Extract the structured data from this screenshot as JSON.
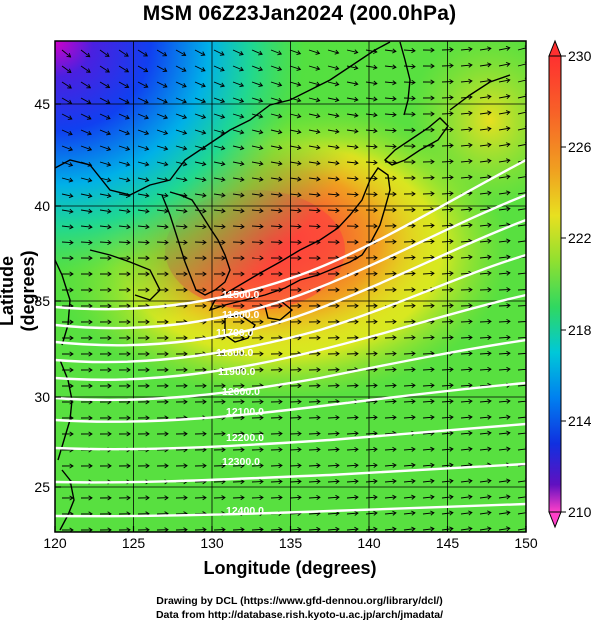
{
  "title": "MSM 06Z23Jan2024 (200.0hPa)",
  "axes": {
    "xlabel": "Longitude (degrees)",
    "ylabel": "Latitude  (degrees)"
  },
  "credits": {
    "line1": "Drawing by DCL (https://www.gfd-dennou.org/library/dcl/)",
    "line2": "Data from http://database.rish.kyoto-u.ac.jp/arch/jmadata/"
  },
  "colorbar": {
    "min": 210,
    "max": 230,
    "ticks": [
      "230",
      "226",
      "222",
      "218",
      "214",
      "210"
    ]
  },
  "map_data": {
    "x_ticks": [
      "120",
      "125",
      "130",
      "135",
      "140",
      "145",
      "150"
    ],
    "y_ticks": [
      "45",
      "40",
      "35",
      "30",
      "25"
    ],
    "x_range": [
      120,
      150
    ],
    "y_range": [
      22.5,
      47.6
    ],
    "field": "temperature (K) shading, wind vectors, geopotential height contours",
    "contour_labels": [
      "11500.0",
      "11600.0",
      "11700.0",
      "11800.0",
      "11900.0",
      "12000.0",
      "12100.0",
      "12200.0",
      "12300.0",
      "12400.0"
    ],
    "colors": {
      "cold": "#1030e0",
      "cool": "#00c8d8",
      "mid": "#40e040",
      "warm": "#f0e020",
      "hot": "#f08020",
      "hottest": "#ff3030"
    }
  }
}
